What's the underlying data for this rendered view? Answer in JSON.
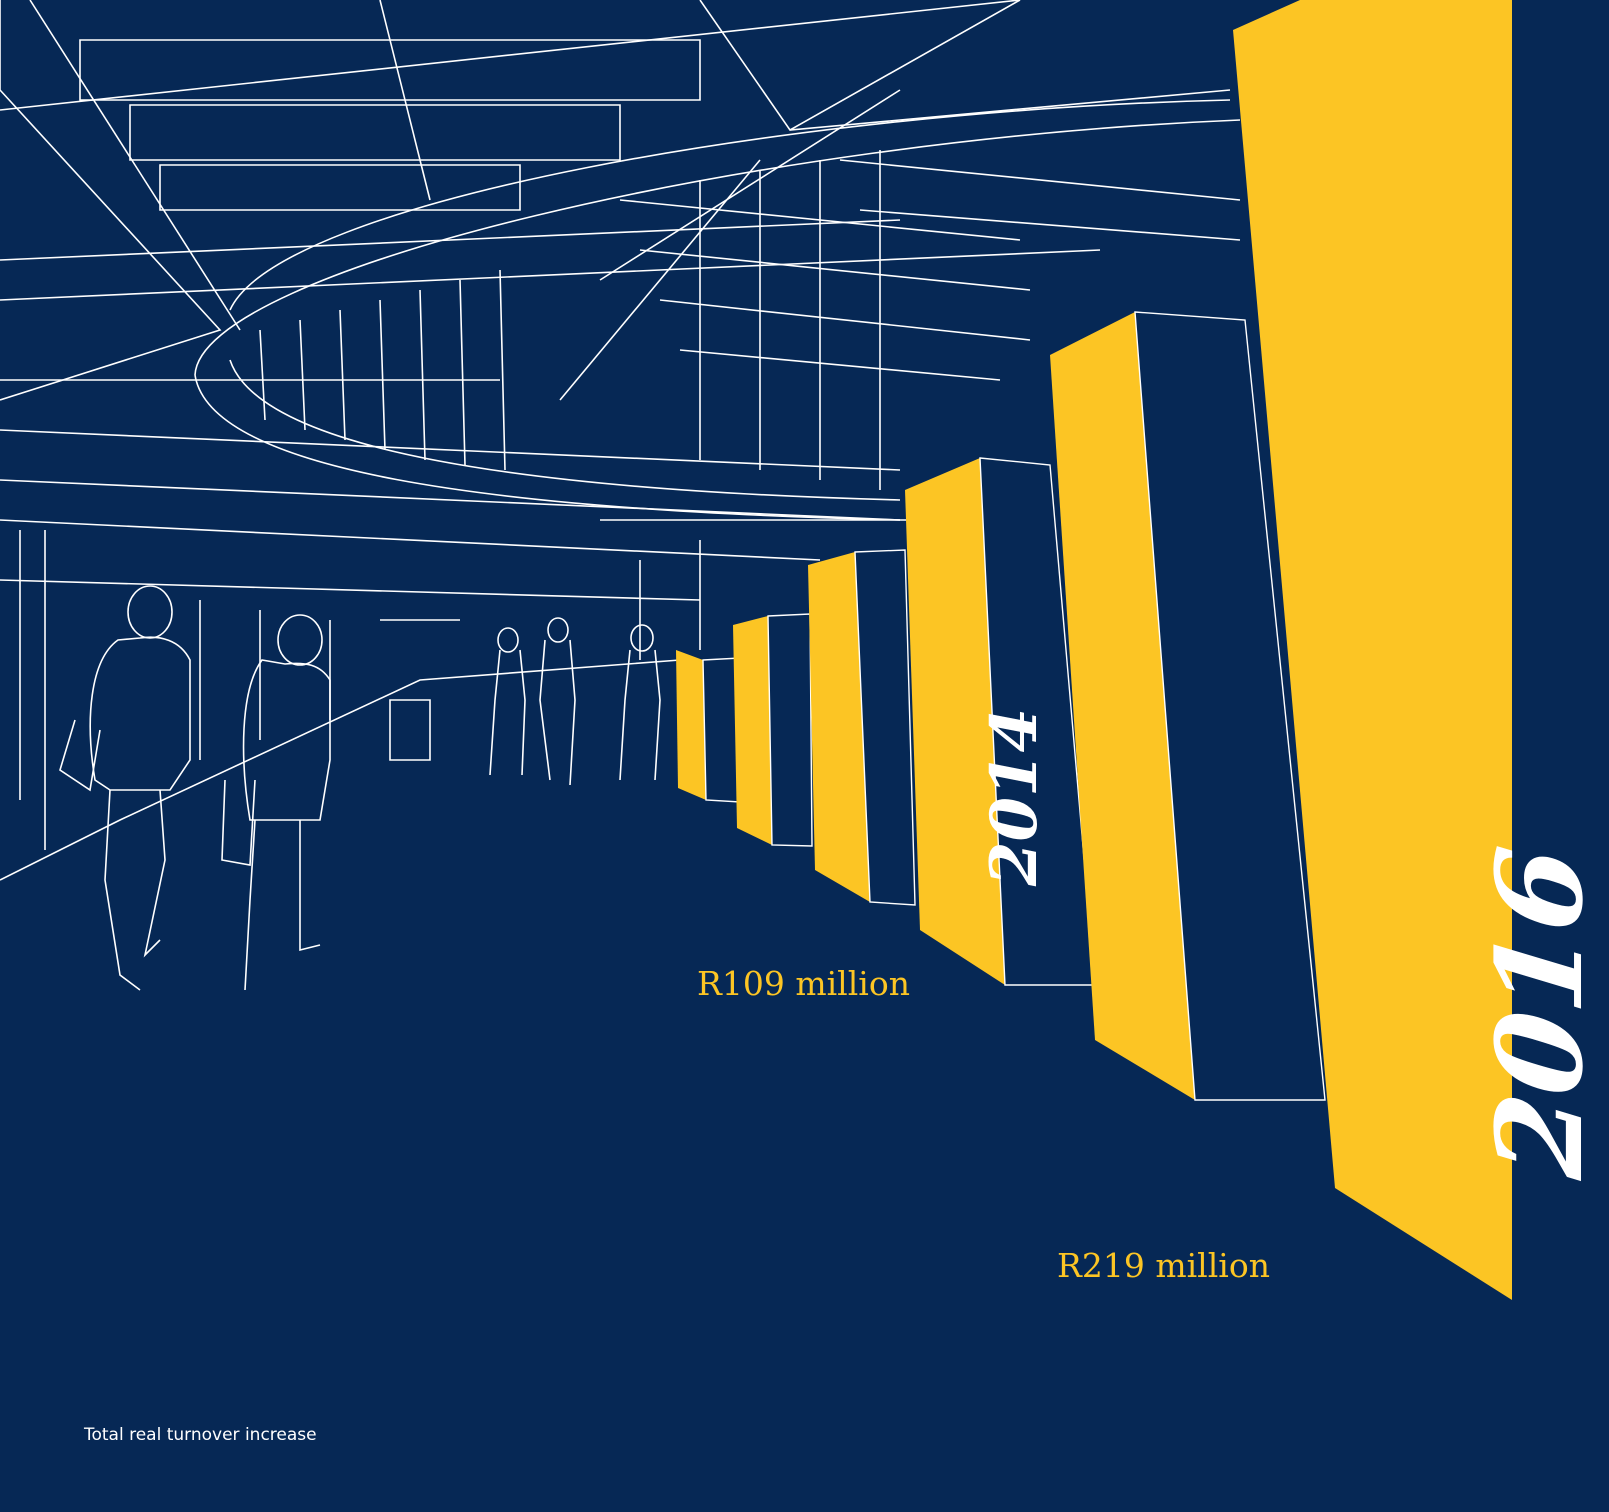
{
  "bars": {
    "highlight_a": {
      "year": "2014",
      "value": "R109 million"
    },
    "highlight_b": {
      "year": "2016",
      "value": "R219 million"
    }
  },
  "caption": "Total real turnover increase",
  "colors": {
    "background": "#062855",
    "accent": "#fcc524",
    "line": "#ffffff"
  }
}
